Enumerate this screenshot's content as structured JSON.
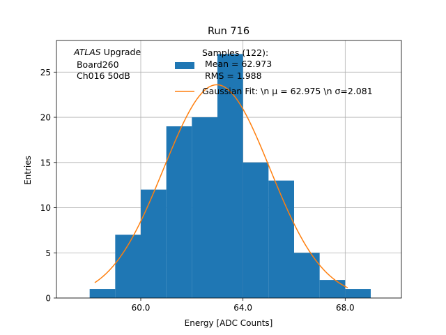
{
  "chart_data": {
    "type": "bar",
    "title": "Run 716",
    "xlabel": "Energy [ADC Counts]",
    "ylabel": "Entries",
    "xlim": [
      56.7,
      70.2
    ],
    "ylim": [
      0,
      28.5
    ],
    "grid": true,
    "legend_placement": "top-right",
    "x_ticks": [
      {
        "value": 60,
        "label": "60.0"
      },
      {
        "value": 64,
        "label": "64.0"
      },
      {
        "value": 68,
        "label": "68.0"
      }
    ],
    "y_ticks": [
      {
        "value": 0,
        "label": "0"
      },
      {
        "value": 5,
        "label": "5"
      },
      {
        "value": 10,
        "label": "10"
      },
      {
        "value": 15,
        "label": "15"
      },
      {
        "value": 20,
        "label": "20"
      },
      {
        "value": 25,
        "label": "25"
      }
    ],
    "histogram": {
      "bin_edges": [
        58,
        59,
        60,
        61,
        62,
        63,
        64,
        65,
        66,
        67,
        68,
        69
      ],
      "counts": [
        1,
        7,
        12,
        19,
        20,
        27,
        15,
        13,
        5,
        2,
        1
      ],
      "color": "#1f77b4"
    },
    "fit": {
      "mean": 62.975,
      "sigma": 2.081,
      "amplitude": 23.6,
      "x_range": [
        58.2,
        68.1
      ],
      "color": "#ff7f0e"
    },
    "legend": {
      "entries": [
        {
          "kind": "patch",
          "lines": [
            "Samples (122):",
            " Mean = 62.973",
            " RMS = 1.988"
          ]
        },
        {
          "kind": "line",
          "lines": [
            "Gaussian Fit: \\n μ = 62.975 \\n σ=2.081"
          ]
        }
      ]
    },
    "annotation": {
      "italic": "ATLAS",
      "rest": " Upgrade",
      "lines": [
        " Board260",
        " Ch016 50dB"
      ]
    }
  }
}
